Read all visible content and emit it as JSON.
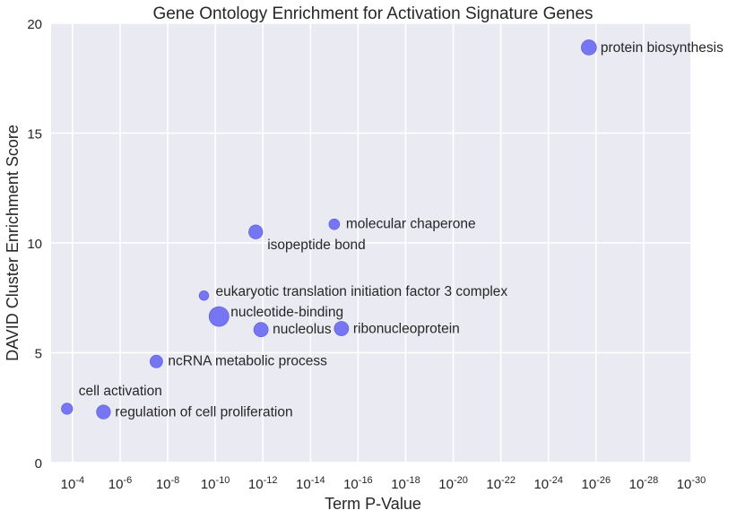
{
  "chart_data": {
    "type": "scatter",
    "title": "Gene Ontology Enrichment for Activation Signature Genes",
    "xlabel": "Term P-Value",
    "ylabel": "DAVID Cluster Enrichment Score",
    "x_scale": "log",
    "x_axis_reversed": true,
    "xlim": [
      "1e-3.1",
      "1e-30"
    ],
    "ylim": [
      0,
      20
    ],
    "x_ticks": [
      "10^-4",
      "10^-6",
      "10^-8",
      "10^-10",
      "10^-12",
      "10^-14",
      "10^-16",
      "10^-18",
      "10^-20",
      "10^-22",
      "10^-24",
      "10^-26",
      "10^-28",
      "10^-30"
    ],
    "y_ticks": [
      0,
      5,
      10,
      15,
      20
    ],
    "grid": true,
    "point_color": "#6b6bf2",
    "background_color": "#eaeaf2",
    "points": [
      {
        "label": "protein biosynthesis",
        "p_value": "2e-26",
        "score": 18.9,
        "size": 2.0
      },
      {
        "label": "molecular chaperone",
        "p_value": "1e-15",
        "score": 10.85,
        "size": 1.0
      },
      {
        "label": "isopeptide bond",
        "p_value": "2e-12",
        "score": 10.5,
        "size": 1.7
      },
      {
        "label": "eukaryotic translation initiation factor 3 complex",
        "p_value": "3e-10",
        "score": 7.6,
        "size": 0.8
      },
      {
        "label": "nucleotide-binding",
        "p_value": "7e-11",
        "score": 6.65,
        "size": 3.4
      },
      {
        "label": "nucleolus",
        "p_value": "1.2e-12",
        "score": 6.05,
        "size": 1.8
      },
      {
        "label": "ribonucleoprotein",
        "p_value": "5e-16",
        "score": 6.1,
        "size": 1.8
      },
      {
        "label": "ncRNA metabolic process",
        "p_value": "3e-8",
        "score": 4.6,
        "size": 1.4
      },
      {
        "label": "cell activation",
        "p_value": "1.7e-4",
        "score": 2.45,
        "size": 1.1
      },
      {
        "label": "regulation of cell proliferation",
        "p_value": "5e-6",
        "score": 2.3,
        "size": 1.7
      }
    ]
  }
}
